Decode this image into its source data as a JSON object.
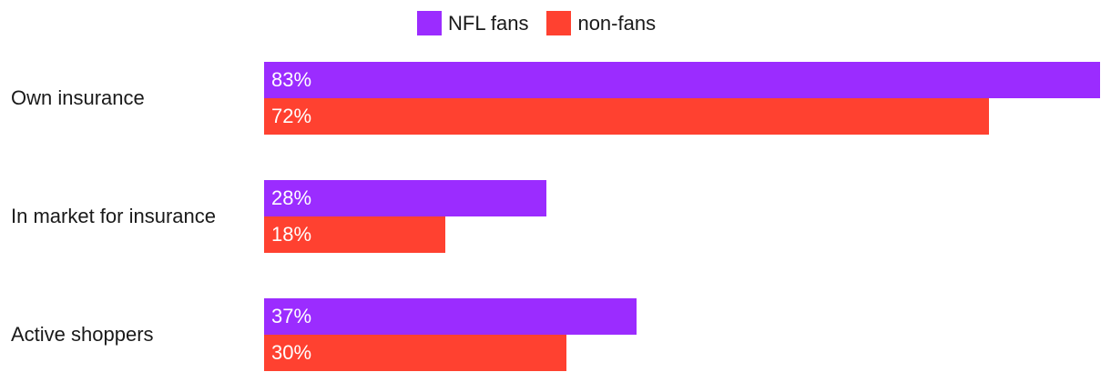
{
  "chart_data": {
    "type": "bar",
    "orientation": "horizontal",
    "categories": [
      "Own insurance",
      "In market for insurance",
      "Active shoppers"
    ],
    "series": [
      {
        "name": "NFL fans",
        "values": [
          83,
          28,
          37
        ],
        "labels": [
          "83%",
          "28%",
          "37%"
        ],
        "color": "#9b2cff"
      },
      {
        "name": "non-fans",
        "values": [
          72,
          18,
          30
        ],
        "labels": [
          "72%",
          "18%",
          "30%"
        ],
        "color": "#ff4130"
      }
    ],
    "xlim": [
      0,
      83
    ],
    "grid": false,
    "legend": "top-center"
  }
}
